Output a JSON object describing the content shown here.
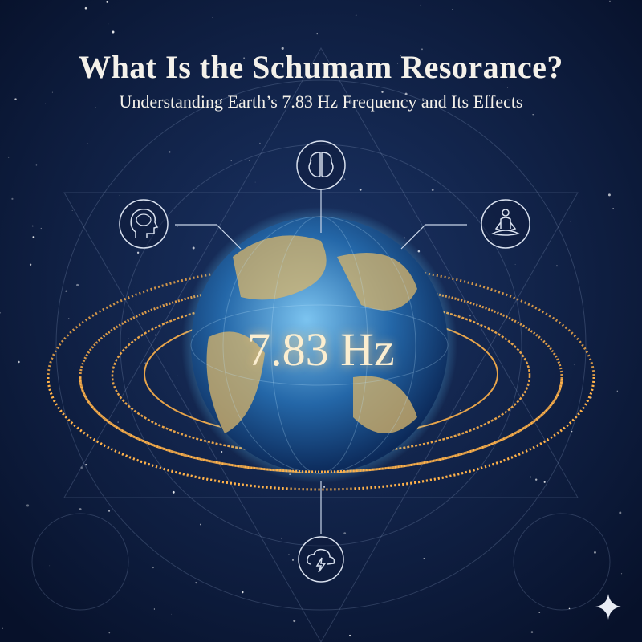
{
  "header": {
    "title": "What Is the Schumam Resorance?",
    "subtitle": "Understanding Earth’s 7.83 Hz Frequency and Its Effects"
  },
  "center_label": "7.83 Hz",
  "icons": [
    "brain-icon",
    "head-brain-icon",
    "meditation-icon",
    "cloud-lightning-icon",
    "sparkle-icon"
  ],
  "colors": {
    "background": "#0d1a3a",
    "rings": "#ffb24a",
    "globe": "#2a7fc4",
    "lines": "#c8d4e8"
  }
}
